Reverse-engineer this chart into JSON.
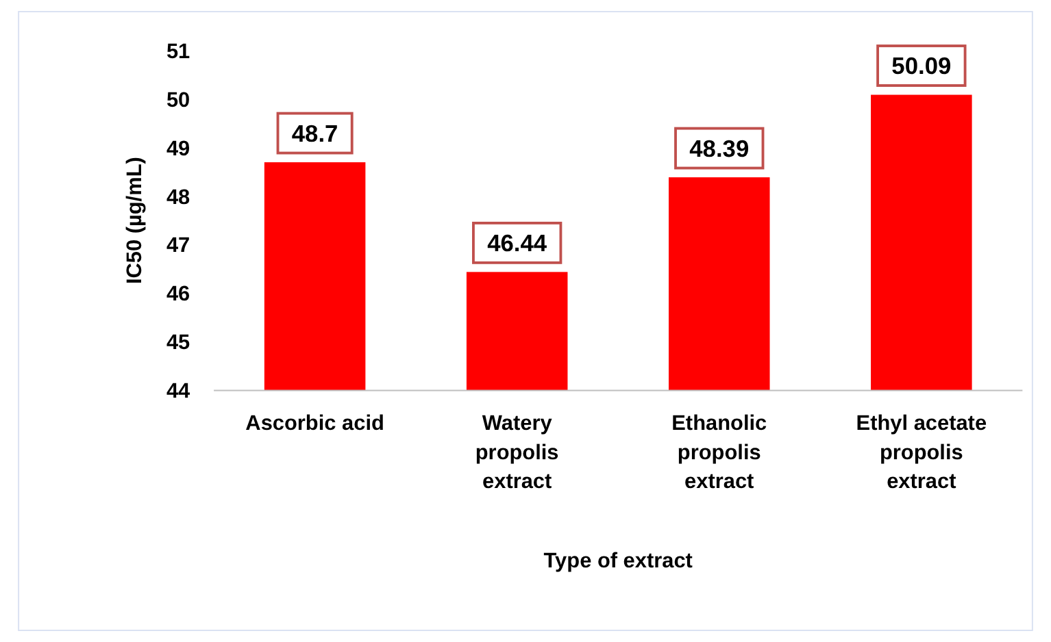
{
  "chart_data": {
    "type": "bar",
    "xlabel": "Type of extract",
    "ylabel": "IC50 (µg/mL)",
    "categories": [
      "Ascorbic acid",
      "Watery propolis extract",
      "Ethanolic propolis extract",
      "Ethyl acetate propolis extract"
    ],
    "values": [
      48.7,
      46.44,
      48.39,
      50.09
    ],
    "color": "#ff0000",
    "ylim": [
      44,
      51
    ],
    "yticks": [
      44,
      45,
      46,
      47,
      48,
      49,
      50,
      51
    ],
    "grid": false,
    "data_labels": true
  }
}
